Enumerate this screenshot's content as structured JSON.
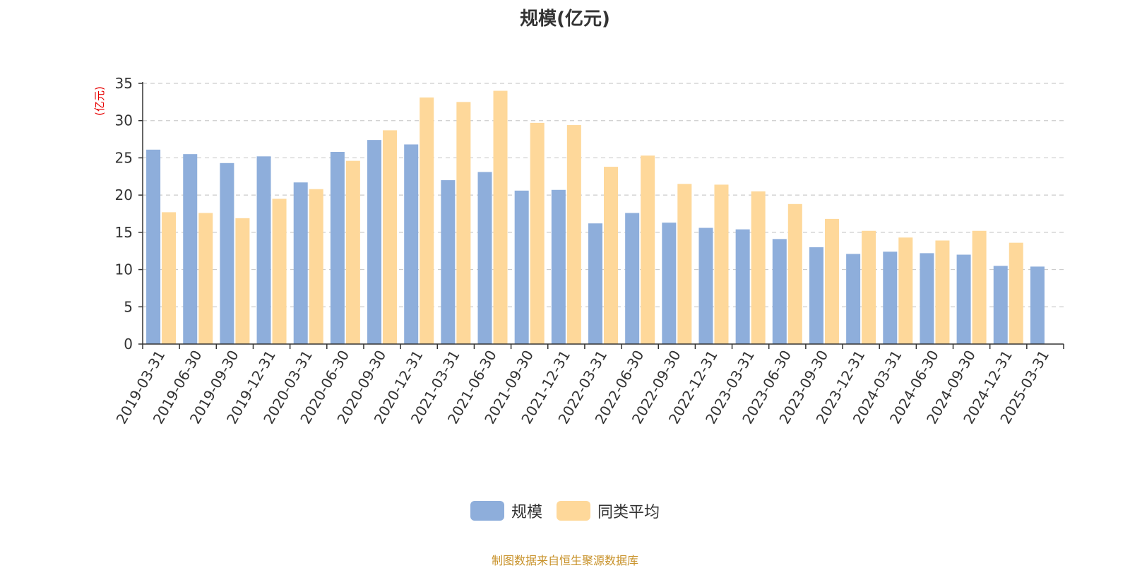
{
  "chart_data": {
    "type": "bar",
    "title": "规模(亿元)",
    "ylabel": "(亿元)",
    "xlabel": "",
    "ylim": [
      0,
      35
    ],
    "yticks": [
      0,
      5,
      10,
      15,
      20,
      25,
      30,
      35
    ],
    "grid": true,
    "legend_position": "bottom",
    "categories": [
      "2019-03-31",
      "2019-06-30",
      "2019-09-30",
      "2019-12-31",
      "2020-03-31",
      "2020-06-30",
      "2020-09-30",
      "2020-12-31",
      "2021-03-31",
      "2021-06-30",
      "2021-09-30",
      "2021-12-31",
      "2022-03-31",
      "2022-06-30",
      "2022-09-30",
      "2022-12-31",
      "2023-03-31",
      "2023-06-30",
      "2023-09-30",
      "2023-12-31",
      "2024-03-31",
      "2024-06-30",
      "2024-09-30",
      "2024-12-31",
      "2025-03-31"
    ],
    "series": [
      {
        "name": "规模",
        "color": "#8eaedb",
        "values": [
          26.1,
          25.5,
          24.3,
          25.2,
          21.7,
          25.8,
          27.4,
          26.8,
          22.0,
          23.1,
          20.6,
          20.7,
          16.2,
          17.6,
          16.3,
          15.6,
          15.4,
          14.1,
          13.0,
          12.1,
          12.4,
          12.2,
          12.0,
          10.5,
          10.4
        ]
      },
      {
        "name": "同类平均",
        "color": "#fed89a",
        "values": [
          17.7,
          17.6,
          16.9,
          19.5,
          20.8,
          24.6,
          28.7,
          33.1,
          32.5,
          34.0,
          29.7,
          29.4,
          23.8,
          25.3,
          21.5,
          21.4,
          20.5,
          18.8,
          16.8,
          15.2,
          14.3,
          13.9,
          15.2,
          13.6,
          null
        ]
      }
    ]
  },
  "source_note": "制图数据来自恒生聚源数据库",
  "colors": {
    "title": "#333333",
    "axis": "#333333",
    "grid": "#cccccc",
    "ylabel": "#e60000",
    "source": "#c8922a"
  }
}
